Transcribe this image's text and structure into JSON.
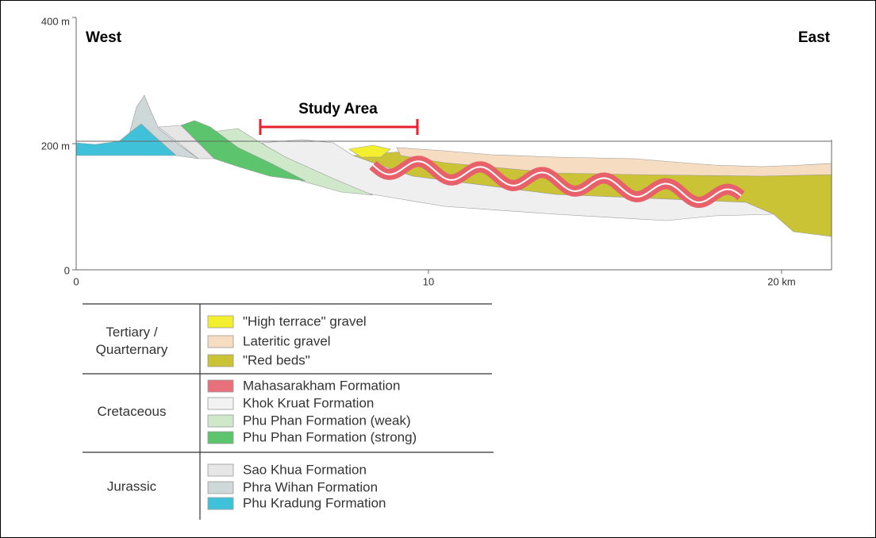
{
  "axes": {
    "y_labels": [
      "400 m",
      "200 m",
      "0"
    ],
    "x_labels": [
      "0",
      "10",
      "20 km"
    ]
  },
  "labels": {
    "west": "West",
    "east": "East",
    "study_area": "Study Area"
  },
  "legend": [
    {
      "period": [
        "Tertiary /",
        "Quarternary"
      ],
      "items": [
        {
          "label": "\"High terrace\" gravel",
          "color": "#f4ef2e"
        },
        {
          "label": "Lateritic gravel",
          "color": "#f6dcc0"
        },
        {
          "label": "\"Red beds\"",
          "color": "#c9c335"
        }
      ]
    },
    {
      "period": [
        "Cretaceous"
      ],
      "items": [
        {
          "label": "Mahasarakham Formation",
          "color": "#e8707a"
        },
        {
          "label": "Khok Kruat Formation",
          "color": "#f2f2f2"
        },
        {
          "label": "Phu Phan Formation (weak)",
          "color": "#cfe8c9"
        },
        {
          "label": "Phu Phan Formation (strong)",
          "color": "#5cc46c"
        }
      ]
    },
    {
      "period": [
        "Jurassic"
      ],
      "items": [
        {
          "label": "Sao Khua Formation",
          "color": "#e6e6e6"
        },
        {
          "label": "Phra Wihan Formation",
          "color": "#cfd8d8"
        },
        {
          "label": "Phu Kradung Formation",
          "color": "#3fc2d9"
        }
      ]
    }
  ]
}
